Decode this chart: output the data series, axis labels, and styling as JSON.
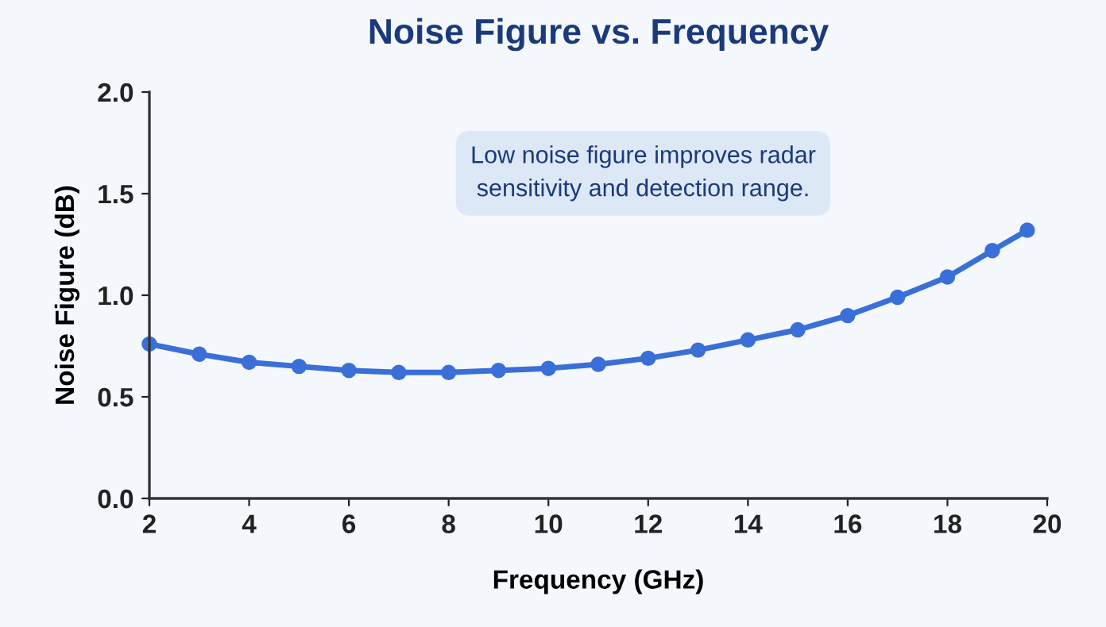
{
  "chart_data": {
    "type": "line",
    "title": "Noise Figure vs. Frequency",
    "xlabel": "Frequency (GHz)",
    "ylabel": "Noise Figure (dB)",
    "annotations": [
      "Low noise figure improves radar\nsensitivity and detection range."
    ],
    "series": [
      {
        "color": "#3a6fd8",
        "x": [
          2,
          3,
          4,
          5,
          6,
          7,
          8,
          9,
          10,
          11,
          12,
          13,
          14,
          15,
          16,
          17,
          18,
          18.9,
          19.6
        ],
        "values": [
          0.76,
          0.71,
          0.67,
          0.65,
          0.63,
          0.62,
          0.62,
          0.63,
          0.64,
          0.66,
          0.69,
          0.73,
          0.78,
          0.83,
          0.9,
          0.99,
          1.09,
          1.22,
          1.32
        ]
      }
    ],
    "xlim": [
      2,
      20
    ],
    "xticks": [
      2,
      4,
      6,
      8,
      10,
      12,
      14,
      16,
      18,
      20
    ],
    "ylim": [
      0,
      2
    ],
    "yticks": [
      {
        "value": 0,
        "label": "0.0"
      },
      {
        "value": 0.5,
        "label": "0.5"
      },
      {
        "value": 1,
        "label": "1.0"
      },
      {
        "value": 1.5,
        "label": "1.5"
      },
      {
        "value": 2,
        "label": "2.0"
      }
    ],
    "grid": false,
    "marker": "circle",
    "line_style": "solid"
  }
}
